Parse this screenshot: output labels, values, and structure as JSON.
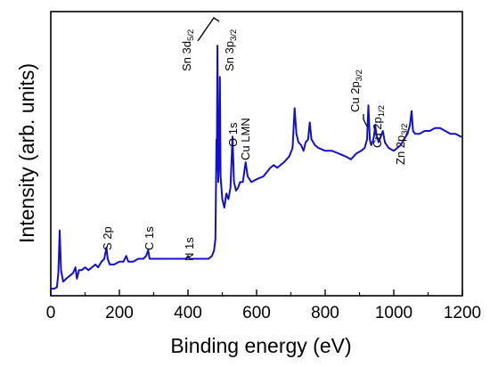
{
  "chart_data": {
    "type": "line",
    "xlabel": "Binding energy (eV)",
    "ylabel": "Intensity (arb. units)",
    "xlim": [
      0,
      1200
    ],
    "ylim": [
      0,
      100
    ],
    "x_ticks": [
      "0",
      "200",
      "400",
      "600",
      "800",
      "1000",
      "1200"
    ],
    "x_tick_values": [
      0,
      200,
      400,
      600,
      800,
      1000,
      1200
    ],
    "y_ticks_shown": false,
    "grid": false,
    "line_color": "#1010d0",
    "series": [
      {
        "points": [
          [
            0,
            2.5
          ],
          [
            10,
            2.5
          ],
          [
            18,
            3
          ],
          [
            22,
            8
          ],
          [
            26,
            23
          ],
          [
            30,
            9
          ],
          [
            36,
            5
          ],
          [
            45,
            6
          ],
          [
            55,
            7
          ],
          [
            65,
            8
          ],
          [
            72,
            10
          ],
          [
            76,
            6
          ],
          [
            82,
            9
          ],
          [
            90,
            9
          ],
          [
            100,
            10
          ],
          [
            110,
            9
          ],
          [
            120,
            10
          ],
          [
            130,
            11
          ],
          [
            138,
            10
          ],
          [
            148,
            12
          ],
          [
            156,
            13
          ],
          [
            162,
            17
          ],
          [
            166,
            13
          ],
          [
            172,
            11
          ],
          [
            185,
            11
          ],
          [
            200,
            12
          ],
          [
            212,
            12
          ],
          [
            220,
            14
          ],
          [
            226,
            12
          ],
          [
            240,
            12
          ],
          [
            255,
            13
          ],
          [
            270,
            13
          ],
          [
            278,
            14
          ],
          [
            284,
            16
          ],
          [
            288,
            13
          ],
          [
            300,
            13
          ],
          [
            320,
            13
          ],
          [
            340,
            13
          ],
          [
            360,
            13
          ],
          [
            380,
            13
          ],
          [
            395,
            13
          ],
          [
            400,
            14
          ],
          [
            405,
            13
          ],
          [
            420,
            13
          ],
          [
            440,
            13
          ],
          [
            460,
            13
          ],
          [
            470,
            14
          ],
          [
            476,
            16
          ],
          [
            480,
            20
          ],
          [
            483,
            55
          ],
          [
            484,
            44
          ],
          [
            486,
            88
          ],
          [
            488,
            40
          ],
          [
            491,
            48
          ],
          [
            493,
            77
          ],
          [
            495,
            42
          ],
          [
            500,
            34
          ],
          [
            506,
            31
          ],
          [
            512,
            36
          ],
          [
            518,
            34
          ],
          [
            524,
            38
          ],
          [
            530,
            56
          ],
          [
            534,
            40
          ],
          [
            540,
            37
          ],
          [
            546,
            38
          ],
          [
            552,
            40
          ],
          [
            560,
            40
          ],
          [
            568,
            47
          ],
          [
            574,
            42
          ],
          [
            585,
            40
          ],
          [
            600,
            41
          ],
          [
            620,
            42
          ],
          [
            640,
            45
          ],
          [
            650,
            46
          ],
          [
            660,
            45
          ],
          [
            680,
            47
          ],
          [
            695,
            49
          ],
          [
            705,
            52
          ],
          [
            711,
            66
          ],
          [
            716,
            57
          ],
          [
            722,
            54
          ],
          [
            730,
            53
          ],
          [
            737,
            51
          ],
          [
            743,
            54
          ],
          [
            750,
            55
          ],
          [
            755,
            61
          ],
          [
            760,
            55
          ],
          [
            770,
            53
          ],
          [
            780,
            52
          ],
          [
            800,
            51
          ],
          [
            820,
            51
          ],
          [
            840,
            50
          ],
          [
            860,
            49
          ],
          [
            875,
            48
          ],
          [
            890,
            50
          ],
          [
            905,
            51
          ],
          [
            915,
            52
          ],
          [
            922,
            55
          ],
          [
            926,
            67
          ],
          [
            930,
            55
          ],
          [
            934,
            53
          ],
          [
            938,
            54
          ],
          [
            942,
            56
          ],
          [
            946,
            60
          ],
          [
            950,
            56
          ],
          [
            956,
            54
          ],
          [
            962,
            56
          ],
          [
            968,
            58
          ],
          [
            974,
            54
          ],
          [
            985,
            52
          ],
          [
            1000,
            51
          ],
          [
            1010,
            52
          ],
          [
            1020,
            53
          ],
          [
            1030,
            55
          ],
          [
            1040,
            57
          ],
          [
            1047,
            60
          ],
          [
            1052,
            65
          ],
          [
            1056,
            58
          ],
          [
            1062,
            57
          ],
          [
            1075,
            57
          ],
          [
            1090,
            58
          ],
          [
            1105,
            58
          ],
          [
            1120,
            59
          ],
          [
            1135,
            59
          ],
          [
            1150,
            58
          ],
          [
            1165,
            57
          ],
          [
            1180,
            57
          ],
          [
            1195,
            56
          ],
          [
            1200,
            56
          ]
        ]
      }
    ],
    "annotations": [
      {
        "label": "S 2p",
        "x": 160
      },
      {
        "label": "C 1s",
        "x": 284
      },
      {
        "label": "N 1s",
        "x": 400
      },
      {
        "label": "Sn 3d5/2",
        "x": 486
      },
      {
        "label": "Sn 3p3/2",
        "x": 493
      },
      {
        "label": "O 1s",
        "x": 530
      },
      {
        "label": "Cu LMN",
        "x": 568
      },
      {
        "label": "Cu 2p3/2",
        "x": 932
      },
      {
        "label": "Cu 2p1/2",
        "x": 952
      },
      {
        "label": "Zn 2p3/2",
        "x": 1021
      }
    ]
  }
}
